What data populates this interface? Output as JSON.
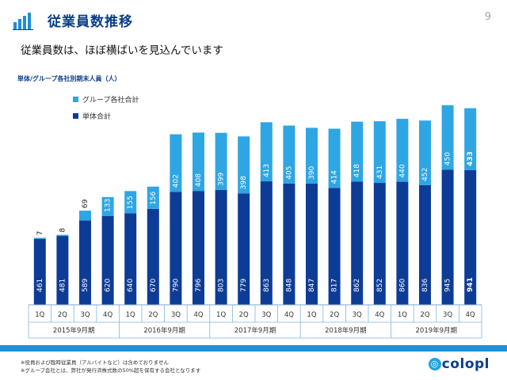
{
  "header": {
    "title": "従業員数推移",
    "page_number": "9",
    "subtitle": "従業員数は、ほぼ横ばいを見込んでいます"
  },
  "footer": {
    "notes": [
      "※役員および臨時従業員（アルバイトなど）は含めておりません",
      "※グループ会社とは、弊社が発行済株式数の50%超を保有する会社となります"
    ],
    "logo_text": "colopl"
  },
  "colors": {
    "accent": "#0b3f8a",
    "standalone": "#0d3c97",
    "group": "#2ea6e3",
    "band": "#1f8fd6"
  },
  "chart_data": {
    "type": "bar",
    "stacked": true,
    "title": "単体/グループ各社別期末人員（人）",
    "categories": [
      "1Q",
      "2Q",
      "3Q",
      "4Q",
      "1Q",
      "2Q",
      "3Q",
      "4Q",
      "1Q",
      "2Q",
      "3Q",
      "4Q",
      "1Q",
      "2Q",
      "3Q",
      "4Q",
      "1Q",
      "2Q",
      "3Q",
      "4Q"
    ],
    "year_groups": [
      {
        "label": "2015年9月期",
        "count": 4
      },
      {
        "label": "2016年9月期",
        "count": 4
      },
      {
        "label": "2017年9月期",
        "count": 4
      },
      {
        "label": "2018年9月期",
        "count": 4
      },
      {
        "label": "2019年9月期",
        "count": 4
      }
    ],
    "series": [
      {
        "name": "単体合計",
        "color": "#0d3c97",
        "values": [
          461,
          481,
          589,
          620,
          640,
          670,
          790,
          796,
          803,
          779,
          863,
          848,
          847,
          817,
          862,
          852,
          860,
          836,
          945,
          941
        ]
      },
      {
        "name": "グループ各社合計",
        "color": "#2ea6e3",
        "values": [
          7,
          8,
          69,
          133,
          155,
          156,
          402,
          408,
          399,
          398,
          413,
          405,
          390,
          414,
          418,
          431,
          440,
          452,
          450,
          433
        ]
      }
    ],
    "legend_order": [
      "グループ各社合計",
      "単体合計"
    ],
    "emphasized_index": 19,
    "ylim": [
      0,
      1400
    ],
    "grid": false,
    "legend_position": "top-left"
  }
}
